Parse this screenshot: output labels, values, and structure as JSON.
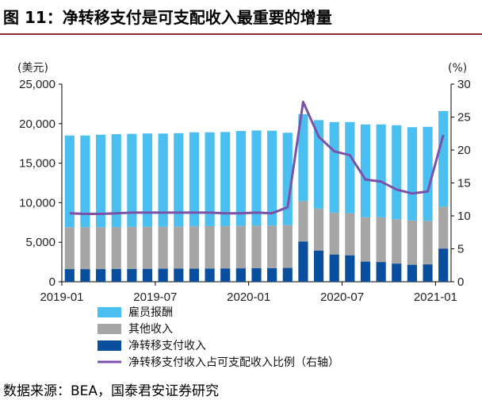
{
  "figure_title": "图 11：净转移支付是可支配收入最重要的增量",
  "source": "数据来源：BEA，国泰君安证券研究",
  "colors": {
    "compensation": "#4bbfef",
    "other_income": "#a6a6a6",
    "transfers": "#0a4f9e",
    "share_line": "#7a52a8",
    "title_rule": "#8a2a2a"
  },
  "chart_data": {
    "type": "bar",
    "stacked": true,
    "left_axis": {
      "unit": "(美元)",
      "ylim": [
        0,
        25000
      ],
      "ticks": [
        "0",
        "5,000",
        "10,000",
        "15,000",
        "20,000",
        "25,000"
      ],
      "tick_values": [
        0,
        5000,
        10000,
        15000,
        20000,
        25000
      ]
    },
    "right_axis": {
      "unit": "(%)",
      "ylim": [
        0,
        30
      ],
      "ticks": [
        "0",
        "5",
        "10",
        "15",
        "20",
        "25",
        "30"
      ],
      "tick_values": [
        0,
        5,
        10,
        15,
        20,
        25,
        30
      ]
    },
    "x_tick_labels": [
      "2019-01",
      "2019-07",
      "2020-01",
      "2020-07",
      "2021-01"
    ],
    "x_tick_index": [
      0,
      6,
      12,
      18,
      24
    ],
    "categories": [
      "2019-01",
      "2019-02",
      "2019-03",
      "2019-04",
      "2019-05",
      "2019-06",
      "2019-07",
      "2019-08",
      "2019-09",
      "2019-10",
      "2019-11",
      "2019-12",
      "2020-01",
      "2020-02",
      "2020-03",
      "2020-04",
      "2020-05",
      "2020-06",
      "2020-07",
      "2020-08",
      "2020-09",
      "2020-10",
      "2020-11",
      "2020-12",
      "2021-01"
    ],
    "series": [
      {
        "name": "净转移支付收入",
        "axis": "left",
        "values": [
          1600,
          1600,
          1600,
          1620,
          1630,
          1640,
          1650,
          1660,
          1670,
          1680,
          1690,
          1700,
          1720,
          1720,
          1750,
          5100,
          3950,
          3450,
          3350,
          2550,
          2500,
          2300,
          2150,
          2200,
          4200
        ]
      },
      {
        "name": "其他收入",
        "axis": "left",
        "values": [
          5300,
          5300,
          5300,
          5300,
          5310,
          5320,
          5320,
          5330,
          5340,
          5350,
          5350,
          5350,
          5370,
          5380,
          5400,
          5100,
          5300,
          5300,
          5300,
          5600,
          5650,
          5600,
          5600,
          5500,
          5300
        ]
      },
      {
        "name": "雇员报酬",
        "axis": "left",
        "values": [
          11600,
          11600,
          11700,
          11750,
          11770,
          11800,
          11780,
          11810,
          11890,
          11870,
          11900,
          12020,
          12050,
          12000,
          11700,
          11000,
          11200,
          11450,
          11550,
          11750,
          11750,
          11900,
          11800,
          11900,
          12100
        ]
      },
      {
        "name": "净转移支付收入占可支配收入比例（右轴）",
        "axis": "right",
        "type": "line",
        "values": [
          10.4,
          10.3,
          10.3,
          10.4,
          10.5,
          10.5,
          10.5,
          10.5,
          10.5,
          10.5,
          10.4,
          10.4,
          10.5,
          10.4,
          11.3,
          27.3,
          22.0,
          19.8,
          19.2,
          15.5,
          15.2,
          14.0,
          13.4,
          13.7,
          22.3
        ]
      }
    ]
  }
}
